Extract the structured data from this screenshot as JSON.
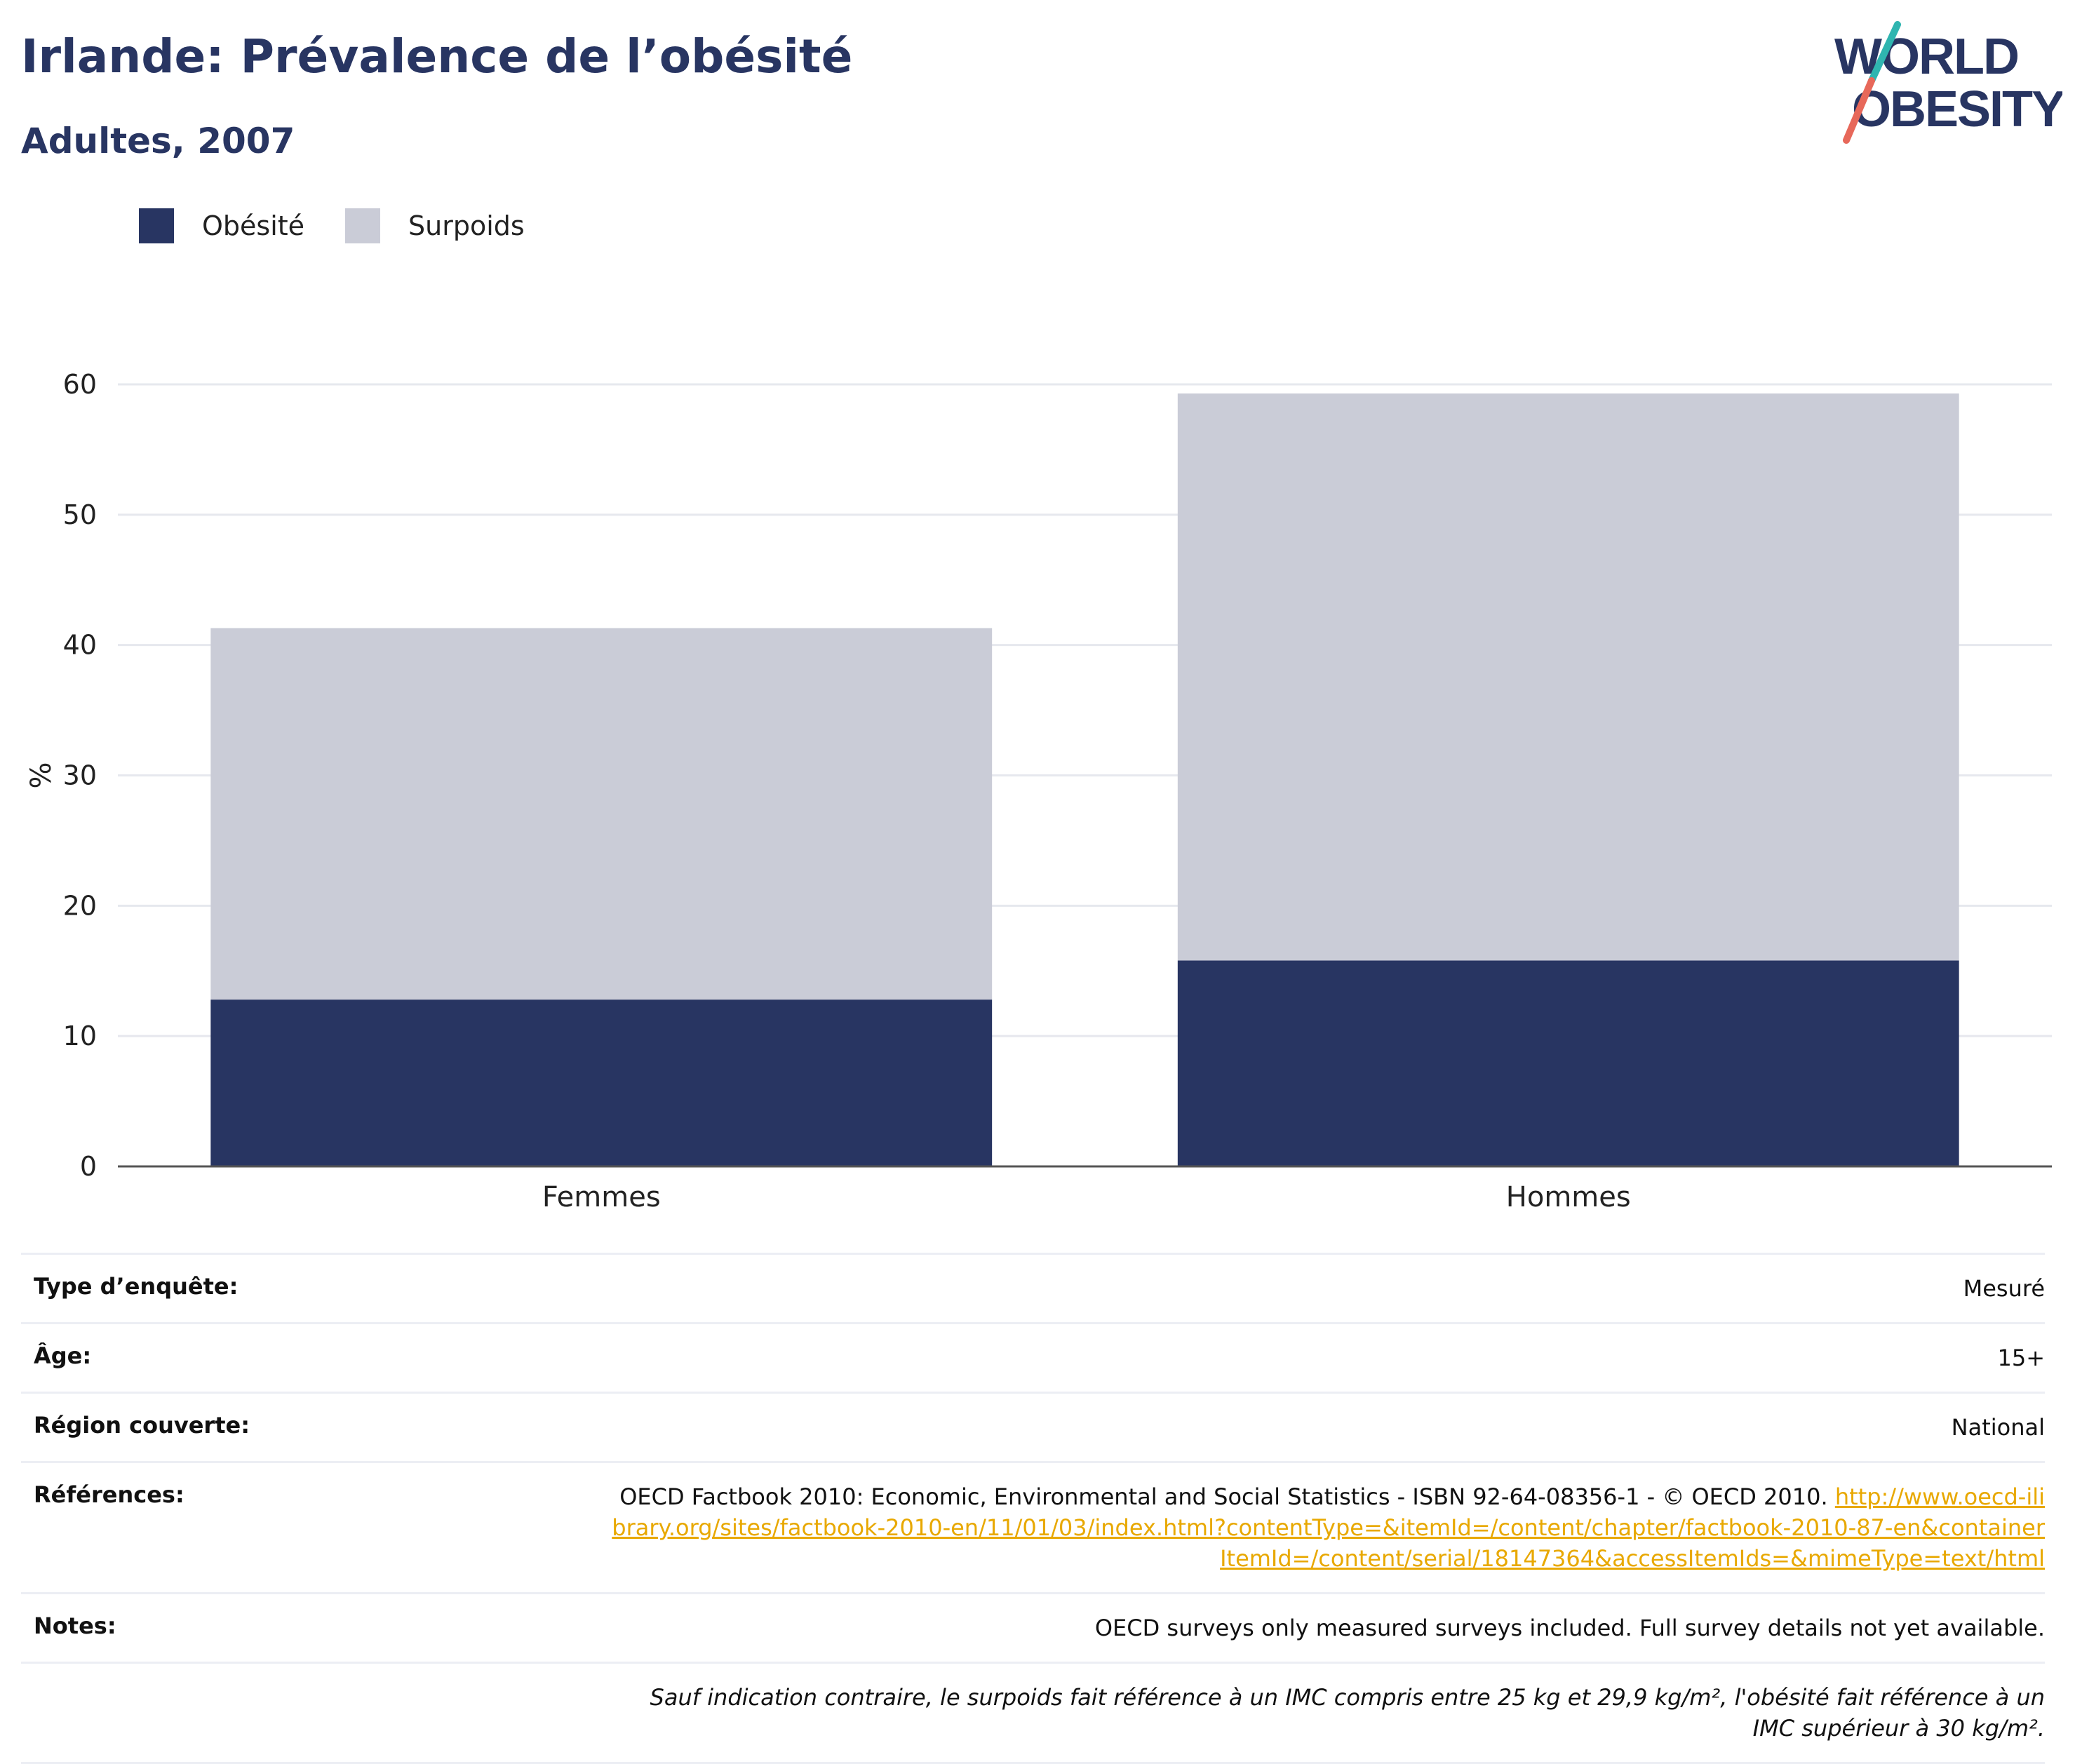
{
  "header": {
    "title": "Irlande: Prévalence de l’obésité",
    "subtitle": "Adultes, 2007"
  },
  "logo": {
    "line1": "WORLD",
    "line2": "OBESITY"
  },
  "colors": {
    "obesite": "#283562",
    "surpoids": "#caccd7",
    "accent_teal": "#2fb5b0",
    "accent_red": "#e7685a",
    "link": "#e8a800"
  },
  "chart_data": {
    "type": "bar",
    "stacked": true,
    "categories": [
      "Femmes",
      "Hommes"
    ],
    "series": [
      {
        "name": "Obésité",
        "values": [
          12.8,
          15.8
        ]
      },
      {
        "name": "Surpoids",
        "values": [
          28.5,
          43.5
        ]
      }
    ],
    "ylabel": "%",
    "ylim": [
      0,
      60
    ],
    "yticks": [
      0,
      10,
      20,
      30,
      40,
      50,
      60
    ],
    "grid": true,
    "legend_position": "top-left"
  },
  "meta": [
    {
      "key": "Type d’enquête:",
      "value": "Mesuré"
    },
    {
      "key": "Âge:",
      "value": "15+"
    },
    {
      "key": "Région couverte:",
      "value": "National"
    },
    {
      "key": "Références:",
      "value": "OECD Factbook 2010: Economic, Environmental and Social Statistics - ISBN 92-64-08356-1 - © OECD 2010.",
      "link": "http://www.oecd-ilibrary.org/sites/factbook-2010-en/11/01/03/index.html?contentType=&itemId=/content/chapter/factbook-2010-87-en&containerItemId=/content/serial/18147364&accessItemIds=&mimeType=text/html"
    },
    {
      "key": "Notes:",
      "value": "OECD surveys only measured surveys included. Full survey details not yet available."
    }
  ],
  "footnote": "Sauf indication contraire, le surpoids fait référence à un IMC compris entre 25 kg et 29,9 kg/m², l'obésité fait référence à un IMC supérieur à 30 kg/m²."
}
